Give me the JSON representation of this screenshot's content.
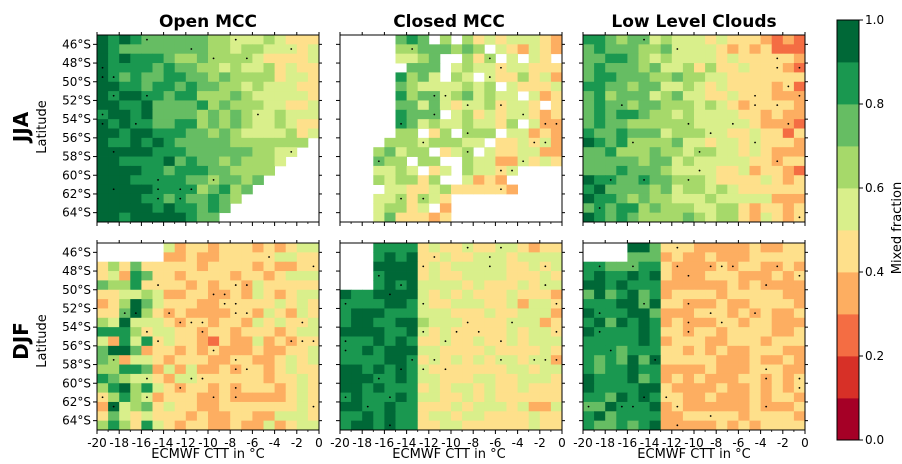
{
  "chart_data": {
    "type": "heatmap",
    "panel_titles": [
      "Open MCC",
      "Closed MCC",
      "Low Level Clouds"
    ],
    "row_labels": [
      "JJA",
      "DJF"
    ],
    "xlabel": "ECMWF CTT in °C",
    "ylabel": "Latitude",
    "x_ticks": [
      "-20",
      "-18",
      "-16",
      "-14",
      "-12",
      "-10",
      "-8",
      "-6",
      "-4",
      "-2",
      "0"
    ],
    "y_ticks": [
      "46°S",
      "48°S",
      "50°S",
      "52°S",
      "54°S",
      "56°S",
      "58°S",
      "60°S",
      "62°S",
      "64°S"
    ],
    "xlim": [
      -20,
      0
    ],
    "ylim": [
      -45,
      -65
    ],
    "colorbar": {
      "label": "Mixed fraction",
      "ticks": [
        "0.0",
        "0.2",
        "0.4",
        "0.6",
        "0.8",
        "1.0"
      ],
      "vmin": 0.0,
      "vmax": 1.0,
      "levels": 10,
      "colors": [
        "#a50026",
        "#d73027",
        "#f46d43",
        "#fdae61",
        "#fee08b",
        "#d9ef8b",
        "#a6d96a",
        "#66bd63",
        "#1a9850",
        "#006837"
      ]
    },
    "grid_resolution": "1 °C × 1° latitude",
    "description": "Each panel is a 20 (CTT) × 20 (latitude) grid of mixed-phase fractions; blank cells indicate no data; dots mark significant cells."
  }
}
